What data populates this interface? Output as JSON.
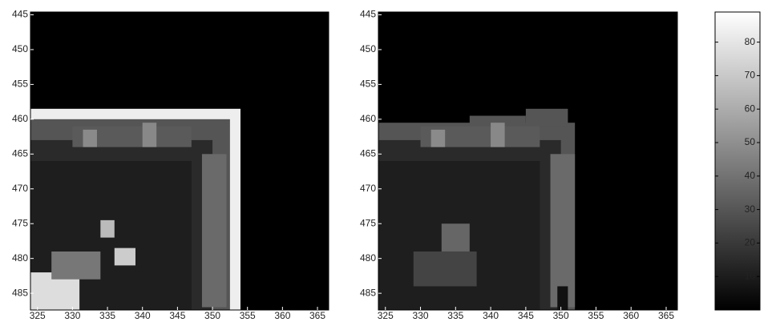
{
  "chart_data": [
    {
      "type": "heatmap",
      "xlim": [
        324,
        366.6
      ],
      "ylim": [
        444.6,
        487.4
      ],
      "xticks": [
        325,
        330,
        335,
        340,
        345,
        350,
        355,
        360,
        365
      ],
      "yticks": [
        445,
        450,
        455,
        460,
        465,
        470,
        475,
        480,
        485
      ],
      "border": true
    },
    {
      "type": "heatmap",
      "xlim": [
        324,
        366.6
      ],
      "ylim": [
        444.6,
        487.4
      ],
      "xticks": [
        325,
        330,
        335,
        340,
        345,
        350,
        355,
        360,
        365
      ],
      "yticks": [
        445,
        450,
        455,
        460,
        465,
        470,
        475,
        480,
        485
      ],
      "border": false
    },
    {
      "type": "colorbar",
      "ylim": [
        0,
        89
      ],
      "yticks": [
        10,
        20,
        30,
        40,
        50,
        60,
        70,
        80
      ]
    }
  ]
}
